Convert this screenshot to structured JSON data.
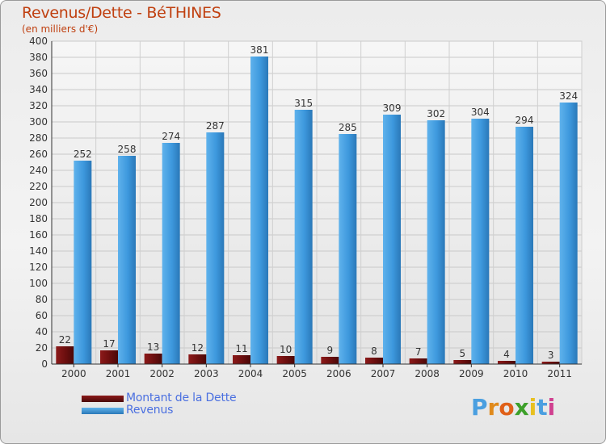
{
  "chart_data": {
    "type": "bar",
    "title": "Revenus/Dette - BéTHINES",
    "subtitle": "(en milliers d'€)",
    "xlabel": "",
    "ylabel": "",
    "ylim": [
      0,
      400
    ],
    "yticks": [
      "0",
      "20",
      "40",
      "60",
      "80",
      "100",
      "120",
      "140",
      "160",
      "180",
      "200",
      "220",
      "240",
      "260",
      "280",
      "300",
      "320",
      "340",
      "360",
      "380",
      "400"
    ],
    "grid": true,
    "legend_position": "bottom-left",
    "categories": [
      "2000",
      "2001",
      "2002",
      "2003",
      "2004",
      "2005",
      "2006",
      "2007",
      "2008",
      "2009",
      "2010",
      "2011"
    ],
    "series": [
      {
        "name": "Montant de la Dette",
        "color": "#7a1010",
        "values": [
          22,
          17,
          13,
          12,
          11,
          10,
          9,
          8,
          7,
          5,
          4,
          3
        ]
      },
      {
        "name": "Revenus",
        "color": "#3d98dd",
        "values": [
          252,
          258,
          274,
          287,
          381,
          315,
          285,
          309,
          302,
          304,
          294,
          324
        ]
      }
    ]
  },
  "legend": {
    "items": [
      {
        "label": "Montant de la Dette",
        "color": "#6e0f0f"
      },
      {
        "label": "Revenus",
        "color": "#3d98dd"
      }
    ]
  },
  "logo": {
    "text": "Proxiti",
    "colors": [
      "#4a9fe0",
      "#e08a1c",
      "#e06018",
      "#3da02a",
      "#e8c020",
      "#4a9fe0",
      "#d04090"
    ]
  }
}
